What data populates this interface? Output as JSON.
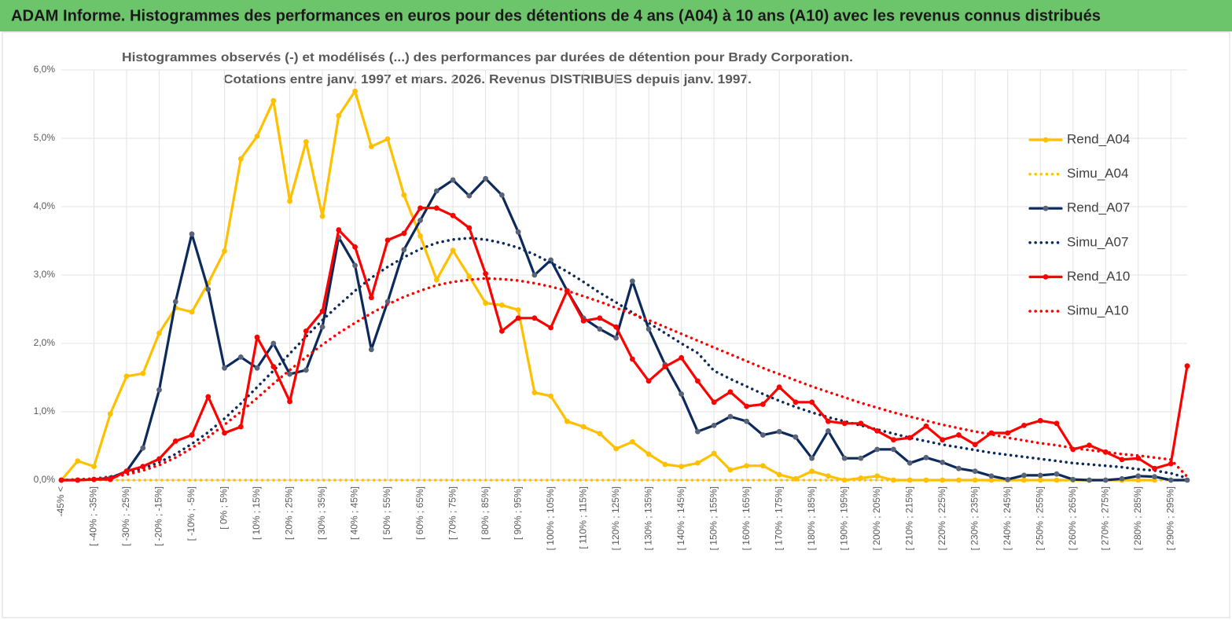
{
  "chart_data": {
    "type": "line",
    "title": "ADAM Informe. Histogrammes des performances en euros pour des détentions de 4 ans (A04) à 10 ans (A10) avec les revenus connus distribués",
    "subtitle": [
      "Histogrammes observés (-) et modélisés (...) des performances par durées de détention pour Brady Corporation.",
      "Cotations entre janv. 1997 et mars. 2026. Revenus DISTRIBUES depuis janv. 1997."
    ],
    "categories": [
      "-45% <",
      null,
      "[ -40% ; -35%]",
      null,
      "[ -30% ; -25%]",
      null,
      "[ -20% ; -15%]",
      null,
      "[ -10% ; -5%]",
      null,
      "[ 0% ; 5%]",
      null,
      "[ 10% ; 15%]",
      null,
      "[ 20% ; 25%]",
      null,
      "[ 30% ; 35%]",
      null,
      "[ 40% ; 45%]",
      null,
      "[ 50% ; 55%]",
      null,
      "[ 60% ; 65%]",
      null,
      "[ 70% ; 75%]",
      null,
      "[ 80% ; 85%]",
      null,
      "[ 90% ; 95%]",
      null,
      "[ 100% ; 105%]",
      null,
      "[ 110% ; 115%]",
      null,
      "[ 120% ; 125%]",
      null,
      "[ 130% ; 135%]",
      null,
      "[ 140% ; 145%]",
      null,
      "[ 150% ; 155%]",
      null,
      "[ 160% ; 165%]",
      null,
      "[ 170% ; 175%]",
      null,
      "[ 180% ; 185%]",
      null,
      "[ 190% ; 195%]",
      null,
      "[ 200% ; 205%]",
      null,
      "[ 210% ; 215%]",
      null,
      "[ 220% ; 225%]",
      null,
      "[ 230% ; 235%]",
      null,
      "[ 240% ; 245%]",
      null,
      "[ 250% ; 255%]",
      null,
      "[ 260% ; 265%]",
      null,
      "[ 270% ; 275%]",
      null,
      "[ 280% ; 285%]",
      null,
      "[ 290% ; 295%]",
      null
    ],
    "ylim": [
      0,
      6
    ],
    "yticks": [
      {
        "value": 0,
        "label": "0,0%"
      },
      {
        "value": 1,
        "label": "1,0%"
      },
      {
        "value": 2,
        "label": "2,0%"
      },
      {
        "value": 3,
        "label": "3,0%"
      },
      {
        "value": 4,
        "label": "4,0%"
      },
      {
        "value": 5,
        "label": "5,0%"
      },
      {
        "value": 6,
        "label": "6,0%"
      }
    ],
    "grid": true,
    "legend": "right",
    "series": [
      {
        "name": "Rend_A04",
        "color": "#ffc000",
        "marker_color": "#ffc000",
        "dash": "solid",
        "values": [
          0,
          0.28,
          0.2,
          0.97,
          1.52,
          1.56,
          2.15,
          2.52,
          2.46,
          2.88,
          3.35,
          4.7,
          5.03,
          5.55,
          4.08,
          4.95,
          3.86,
          5.33,
          5.69,
          4.88,
          4.99,
          4.17,
          3.57,
          2.93,
          3.36,
          2.98,
          2.59,
          2.56,
          2.49,
          1.28,
          1.23,
          0.86,
          0.78,
          0.68,
          0.46,
          0.56,
          0.38,
          0.23,
          0.2,
          0.25,
          0.39,
          0.15,
          0.21,
          0.21,
          0.08,
          0.02,
          0.13,
          0.06,
          0,
          0.03,
          0.06,
          0,
          0,
          0,
          0,
          0,
          0,
          0,
          0,
          0,
          0,
          0,
          0,
          0,
          0,
          0,
          0,
          0,
          null,
          null
        ]
      },
      {
        "name": "Simu_A04",
        "color": "#ffc000",
        "dash": "dotted",
        "values": [
          0,
          0,
          0,
          0,
          0,
          0,
          0,
          0,
          0,
          0,
          0,
          0,
          0,
          0,
          0,
          0,
          0,
          0,
          0,
          0,
          0,
          0,
          0,
          0,
          0,
          0,
          0,
          0,
          0,
          0,
          0,
          0,
          0,
          0,
          0,
          0,
          0,
          0,
          0,
          0,
          0,
          0,
          0,
          0,
          0,
          0,
          0,
          0,
          0,
          0,
          0,
          0,
          0,
          0,
          0,
          0,
          0,
          0,
          0,
          0,
          0,
          0,
          0,
          0,
          0,
          0,
          0,
          0,
          0,
          0
        ]
      },
      {
        "name": "Rend_A07",
        "color": "#0d2a5c",
        "marker_color": "#5a6478",
        "dash": "solid",
        "values": [
          0,
          0,
          0.01,
          0.03,
          0.13,
          0.47,
          1.32,
          2.61,
          3.6,
          2.79,
          1.64,
          1.8,
          1.64,
          2.0,
          1.55,
          1.61,
          2.24,
          3.55,
          3.14,
          1.91,
          2.61,
          3.37,
          3.8,
          4.23,
          4.39,
          4.16,
          4.41,
          4.17,
          3.63,
          3.0,
          3.22,
          2.77,
          2.37,
          2.21,
          2.08,
          2.91,
          2.21,
          1.69,
          1.26,
          0.71,
          0.8,
          0.93,
          0.86,
          0.66,
          0.71,
          0.63,
          0.32,
          0.72,
          0.32,
          0.32,
          0.45,
          0.45,
          0.25,
          0.33,
          0.26,
          0.17,
          0.13,
          0.06,
          0.01,
          0.07,
          0.07,
          0.09,
          0.01,
          0,
          0,
          0.02,
          0.06,
          0.05,
          0,
          0
        ]
      },
      {
        "name": "Simu_A07",
        "color": "#0d2a5c",
        "dash": "dotted",
        "values": [
          0,
          0.01,
          0.02,
          0.05,
          0.1,
          0.17,
          0.26,
          0.38,
          0.53,
          0.7,
          0.9,
          1.12,
          1.36,
          1.6,
          1.85,
          2.1,
          2.34,
          2.56,
          2.77,
          2.96,
          3.12,
          3.26,
          3.38,
          3.47,
          3.52,
          3.54,
          3.52,
          3.47,
          3.4,
          3.3,
          3.18,
          3.05,
          2.9,
          2.74,
          2.6,
          2.45,
          2.3,
          2.15,
          2.0,
          1.86,
          1.6,
          1.48,
          1.37,
          1.26,
          1.16,
          1.07,
          0.99,
          0.92,
          0.86,
          0.8,
          0.74,
          0.68,
          0.62,
          0.57,
          0.52,
          0.48,
          0.44,
          0.4,
          0.37,
          0.34,
          0.31,
          0.28,
          0.25,
          0.23,
          0.21,
          0.19,
          0.16,
          0.14,
          0.1,
          0.03
        ]
      },
      {
        "name": "Rend_A10",
        "color": "#ff0000",
        "marker_color": "#ff0000",
        "dash": "solid",
        "values": [
          0,
          0,
          0.01,
          0.01,
          0.13,
          0.2,
          0.31,
          0.57,
          0.66,
          1.22,
          0.69,
          0.78,
          2.09,
          1.66,
          1.15,
          2.18,
          2.47,
          3.66,
          3.41,
          2.67,
          3.51,
          3.61,
          3.98,
          3.98,
          3.87,
          3.69,
          3.02,
          2.18,
          2.37,
          2.37,
          2.23,
          2.77,
          2.33,
          2.37,
          2.24,
          1.77,
          1.45,
          1.66,
          1.79,
          1.45,
          1.14,
          1.29,
          1.08,
          1.11,
          1.36,
          1.14,
          1.14,
          0.86,
          0.83,
          0.83,
          0.72,
          0.59,
          0.62,
          0.79,
          0.59,
          0.66,
          0.52,
          0.69,
          0.69,
          0.8,
          0.87,
          0.83,
          0.45,
          0.51,
          0.41,
          0.3,
          0.32,
          0.17,
          0.24,
          1.67
        ]
      },
      {
        "name": "Simu_A10",
        "color": "#ff0000",
        "dash": "dotted",
        "values": [
          0,
          0.01,
          0.02,
          0.04,
          0.08,
          0.14,
          0.22,
          0.33,
          0.47,
          0.63,
          0.81,
          1.0,
          1.2,
          1.41,
          1.61,
          1.8,
          1.98,
          2.15,
          2.3,
          2.44,
          2.57,
          2.68,
          2.77,
          2.85,
          2.9,
          2.93,
          2.95,
          2.94,
          2.92,
          2.88,
          2.83,
          2.77,
          2.69,
          2.61,
          2.52,
          2.43,
          2.34,
          2.24,
          2.14,
          2.04,
          1.94,
          1.84,
          1.74,
          1.64,
          1.55,
          1.46,
          1.37,
          1.29,
          1.21,
          1.13,
          1.06,
          0.99,
          0.93,
          0.87,
          0.81,
          0.76,
          0.71,
          0.67,
          0.62,
          0.58,
          0.54,
          0.51,
          0.47,
          0.44,
          0.41,
          0.38,
          0.36,
          0.33,
          0.3,
          0.05
        ]
      }
    ]
  }
}
